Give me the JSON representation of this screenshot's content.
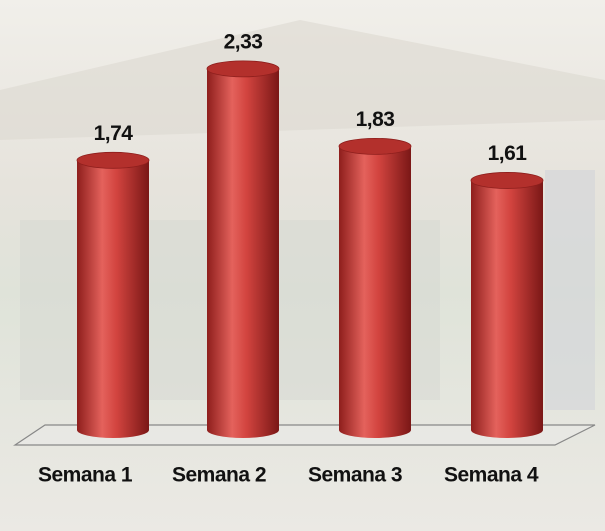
{
  "chart_data": {
    "type": "bar",
    "categories": [
      "Semana 1",
      "Semana 2",
      "Semana 3",
      "Semana 4"
    ],
    "values": [
      1.74,
      2.33,
      1.83,
      1.61
    ],
    "value_labels": [
      "1,74",
      "2,33",
      "1,83",
      "1,61"
    ],
    "color": "#c0302c"
  }
}
